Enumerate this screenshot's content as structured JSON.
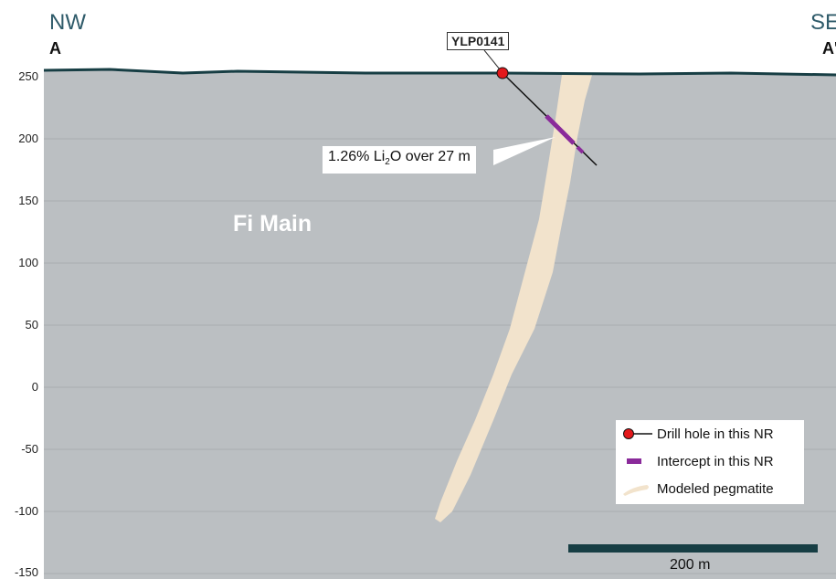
{
  "section": {
    "left_direction": "NW",
    "left_label": "A",
    "right_direction": "SE",
    "right_label": "A'",
    "name": "Fi Main"
  },
  "elevation_axis": {
    "ticks": [
      "250",
      "200",
      "150",
      "100",
      "50",
      "0",
      "-50",
      "-100",
      "-150"
    ]
  },
  "drill_hole": {
    "id": "YLP0141",
    "intercept_grade": "1.26% Li",
    "intercept_sub": "2",
    "intercept_rest": "O over 27 m"
  },
  "legend": {
    "items": [
      {
        "label": "Drill hole in this NR",
        "symbol": "drill-hole"
      },
      {
        "label": "Intercept in this NR",
        "symbol": "intercept"
      },
      {
        "label": "Modeled pegmatite",
        "symbol": "pegmatite"
      }
    ]
  },
  "scale_bar": {
    "label": "200 m"
  },
  "colors": {
    "rock": "#bbbfc2",
    "pegmatite": "#f2e3cc",
    "topography": "#173e44",
    "intercept": "#8a2a9a",
    "collar": "#e3181b",
    "direction": "#2f5b6a"
  }
}
